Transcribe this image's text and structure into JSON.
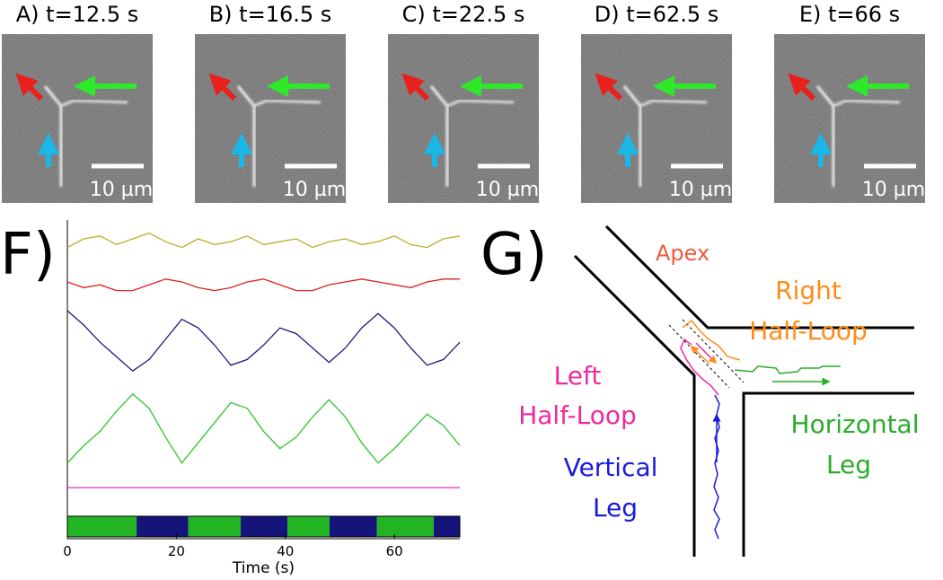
{
  "panels": [
    {
      "label": "A) t=12.5 s",
      "scale_bar": "10 µm"
    },
    {
      "label": "B) t=16.5 s",
      "scale_bar": "10 µm"
    },
    {
      "label": "C) t=22.5 s",
      "scale_bar": "10 µm"
    },
    {
      "label": "D) t=62.5 s",
      "scale_bar": "10 µm"
    },
    {
      "label": "E) t=66 s",
      "scale_bar": "10 µm"
    }
  ],
  "chart_data": {
    "type": "line",
    "label": "F)",
    "xlabel": "Time (s)",
    "xlim": [
      0,
      72
    ],
    "xticks": [
      0,
      20,
      40,
      60
    ],
    "ylim": [
      0,
      100
    ],
    "x": [
      0,
      3,
      6,
      9,
      12,
      15,
      18,
      21,
      24,
      27,
      30,
      33,
      36,
      39,
      42,
      45,
      48,
      51,
      54,
      57,
      60,
      63,
      66,
      69,
      72
    ],
    "series": [
      {
        "color": "#b5b12a",
        "values": [
          92,
          95,
          96,
          93,
          95,
          97,
          94,
          92,
          95,
          93,
          94,
          96,
          93,
          94,
          95,
          92,
          94,
          95,
          93,
          94,
          96,
          93,
          92,
          95,
          96
        ]
      },
      {
        "color": "#e0201e",
        "values": [
          80,
          78,
          79,
          77,
          77,
          79,
          81,
          80,
          78,
          77,
          78,
          80,
          81,
          79,
          77,
          77,
          79,
          80,
          81,
          80,
          79,
          78,
          80,
          81,
          81
        ]
      },
      {
        "color": "#1a1a80",
        "values": [
          70,
          65,
          59,
          54,
          49,
          53,
          60,
          67,
          64,
          58,
          51,
          53,
          58,
          64,
          62,
          57,
          52,
          57,
          64,
          69,
          64,
          57,
          51,
          53,
          59
        ]
      },
      {
        "color": "#2ec42e",
        "values": [
          17,
          23,
          28,
          35,
          41,
          36,
          26,
          17,
          24,
          31,
          38,
          36,
          28,
          22,
          26,
          33,
          39,
          33,
          24,
          17,
          22,
          28,
          34,
          30,
          23
        ]
      },
      {
        "color": "#e030c0",
        "values": [
          8.4,
          8.4,
          8.4,
          8.4,
          8.4,
          8.4,
          8.4,
          8.4,
          8.4,
          8.4,
          8.4,
          8.4,
          8.4,
          8.4,
          8.4,
          8.4,
          8.4,
          8.4,
          8.4,
          8.4,
          8.4,
          8.4,
          8.4,
          8.4,
          8.4
        ]
      }
    ],
    "bands": [
      {
        "start": 0,
        "end": 12.7,
        "color": "#22b422"
      },
      {
        "start": 12.7,
        "end": 22.2,
        "color": "#14147a"
      },
      {
        "start": 22.2,
        "end": 31.8,
        "color": "#22b422"
      },
      {
        "start": 31.8,
        "end": 40.4,
        "color": "#14147a"
      },
      {
        "start": 40.4,
        "end": 48.1,
        "color": "#22b422"
      },
      {
        "start": 48.1,
        "end": 56.8,
        "color": "#14147a"
      },
      {
        "start": 56.8,
        "end": 67.2,
        "color": "#22b422"
      },
      {
        "start": 67.2,
        "end": 72,
        "color": "#14147a"
      }
    ]
  },
  "diagram": {
    "label": "G)",
    "apex": "Apex",
    "right_half_loop": [
      "Right",
      "Half-Loop"
    ],
    "left_half_loop": [
      "Left",
      "Half-Loop"
    ],
    "horizontal_leg": [
      "Horizontal",
      "Leg"
    ],
    "vertical_leg": [
      "Vertical",
      "Leg"
    ]
  }
}
